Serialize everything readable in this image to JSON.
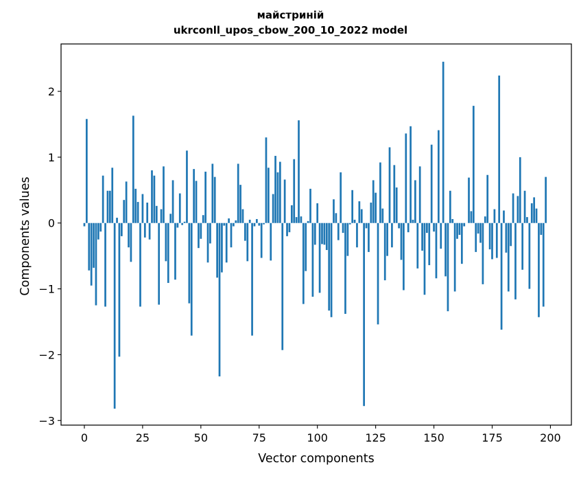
{
  "chart_data": {
    "type": "bar",
    "title_line1": "майстриній",
    "title_line2": "ukrconll_upos_cbow_200_10_2022 model",
    "xlabel": "Vector components",
    "ylabel": "Components values",
    "xlim": [
      -10,
      209
    ],
    "ylim": [
      -3.07,
      2.72
    ],
    "xticks": [
      0,
      25,
      50,
      75,
      100,
      125,
      150,
      175,
      200
    ],
    "yticks": [
      -3,
      -2,
      -1,
      0,
      1,
      2
    ],
    "ytick_labels": [
      "−3",
      "−2",
      "−1",
      "0",
      "1",
      "2"
    ],
    "bar_color": "#1f77b4",
    "grid": false,
    "values": [
      -0.05,
      1.58,
      -0.72,
      -0.95,
      -0.68,
      -1.25,
      -0.25,
      -0.13,
      0.72,
      -1.27,
      0.49,
      0.49,
      0.84,
      -2.82,
      0.08,
      -2.03,
      -0.2,
      0.35,
      0.63,
      -0.37,
      -0.59,
      1.63,
      0.52,
      0.32,
      -1.27,
      0.44,
      -0.22,
      0.31,
      -0.25,
      0.8,
      0.72,
      0.26,
      -1.24,
      0.21,
      0.86,
      -0.58,
      -0.91,
      0.14,
      0.65,
      -0.86,
      -0.07,
      0.45,
      -0.03,
      0.02,
      1.1,
      -1.22,
      -1.71,
      0.82,
      0.64,
      -0.38,
      -0.24,
      0.12,
      0.78,
      -0.6,
      -0.31,
      0.9,
      0.7,
      -0.83,
      -2.33,
      -0.75,
      -0.04,
      -0.6,
      0.07,
      -0.37,
      -0.05,
      0.04,
      0.9,
      0.58,
      0.21,
      -0.27,
      -0.58,
      0.05,
      -1.71,
      -0.05,
      0.06,
      -0.04,
      -0.53,
      -0.02,
      1.3,
      0.84,
      -0.57,
      0.44,
      1.02,
      0.77,
      0.93,
      -1.93,
      0.66,
      -0.2,
      -0.14,
      0.27,
      0.97,
      0.09,
      1.56,
      0.1,
      -1.23,
      -0.73,
      0.03,
      0.52,
      -1.12,
      -0.33,
      0.3,
      -1.06,
      -0.32,
      -0.33,
      -0.41,
      -1.33,
      -1.43,
      0.36,
      0.15,
      -0.26,
      0.77,
      -0.15,
      -1.38,
      -0.5,
      -0.02,
      0.5,
      0.05,
      -0.37,
      0.33,
      0.21,
      -2.78,
      -0.08,
      -0.44,
      0.31,
      0.65,
      0.46,
      -1.54,
      0.92,
      0.22,
      -0.87,
      -0.5,
      1.15,
      -0.37,
      0.88,
      0.54,
      -0.08,
      -0.56,
      -1.02,
      1.36,
      -0.14,
      1.47,
      0.05,
      0.65,
      -0.69,
      0.86,
      -0.42,
      -1.09,
      -0.15,
      -0.64,
      1.19,
      -0.13,
      -0.84,
      1.41,
      -0.39,
      2.45,
      -0.81,
      -1.34,
      0.49,
      0.06,
      -1.04,
      -0.24,
      -0.18,
      -0.62,
      -0.05,
      0.0,
      0.69,
      0.18,
      1.78,
      -0.44,
      -0.16,
      -0.3,
      -0.93,
      0.1,
      0.73,
      -0.4,
      -0.55,
      0.21,
      -0.53,
      2.24,
      -1.62,
      0.19,
      -0.45,
      -1.04,
      -0.35,
      0.45,
      -1.16,
      0.41,
      1.0,
      -0.71,
      0.49,
      0.09,
      -1.0,
      0.3,
      0.39,
      0.22,
      -1.43,
      -0.18,
      -1.27,
      0.7
    ]
  }
}
